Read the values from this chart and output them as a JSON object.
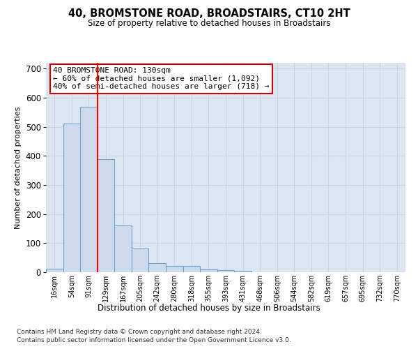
{
  "title": "40, BROMSTONE ROAD, BROADSTAIRS, CT10 2HT",
  "subtitle": "Size of property relative to detached houses in Broadstairs",
  "xlabel": "Distribution of detached houses by size in Broadstairs",
  "ylabel": "Number of detached properties",
  "bar_values": [
    13,
    511,
    570,
    388,
    160,
    82,
    31,
    22,
    22,
    10,
    8,
    5,
    0,
    0,
    0,
    0,
    0,
    0,
    0,
    0,
    0
  ],
  "x_labels": [
    "16sqm",
    "54sqm",
    "91sqm",
    "129sqm",
    "167sqm",
    "205sqm",
    "242sqm",
    "280sqm",
    "318sqm",
    "355sqm",
    "393sqm",
    "431sqm",
    "468sqm",
    "506sqm",
    "544sqm",
    "582sqm",
    "619sqm",
    "657sqm",
    "695sqm",
    "732sqm",
    "770sqm"
  ],
  "bar_color": "#ccdaeb",
  "bar_edge_color": "#6699cc",
  "red_line_x": 2.5,
  "annotation_text": "40 BROMSTONE ROAD: 130sqm\n← 60% of detached houses are smaller (1,092)\n40% of semi-detached houses are larger (718) →",
  "annotation_box_facecolor": "#ffffff",
  "annotation_box_edgecolor": "#cc0000",
  "ylim": [
    0,
    720
  ],
  "yticks": [
    0,
    100,
    200,
    300,
    400,
    500,
    600,
    700
  ],
  "grid_color": "#c8d4e4",
  "background_color": "#dce6f0",
  "footer_line1": "Contains HM Land Registry data © Crown copyright and database right 2024.",
  "footer_line2": "Contains public sector information licensed under the Open Government Licence v3.0."
}
